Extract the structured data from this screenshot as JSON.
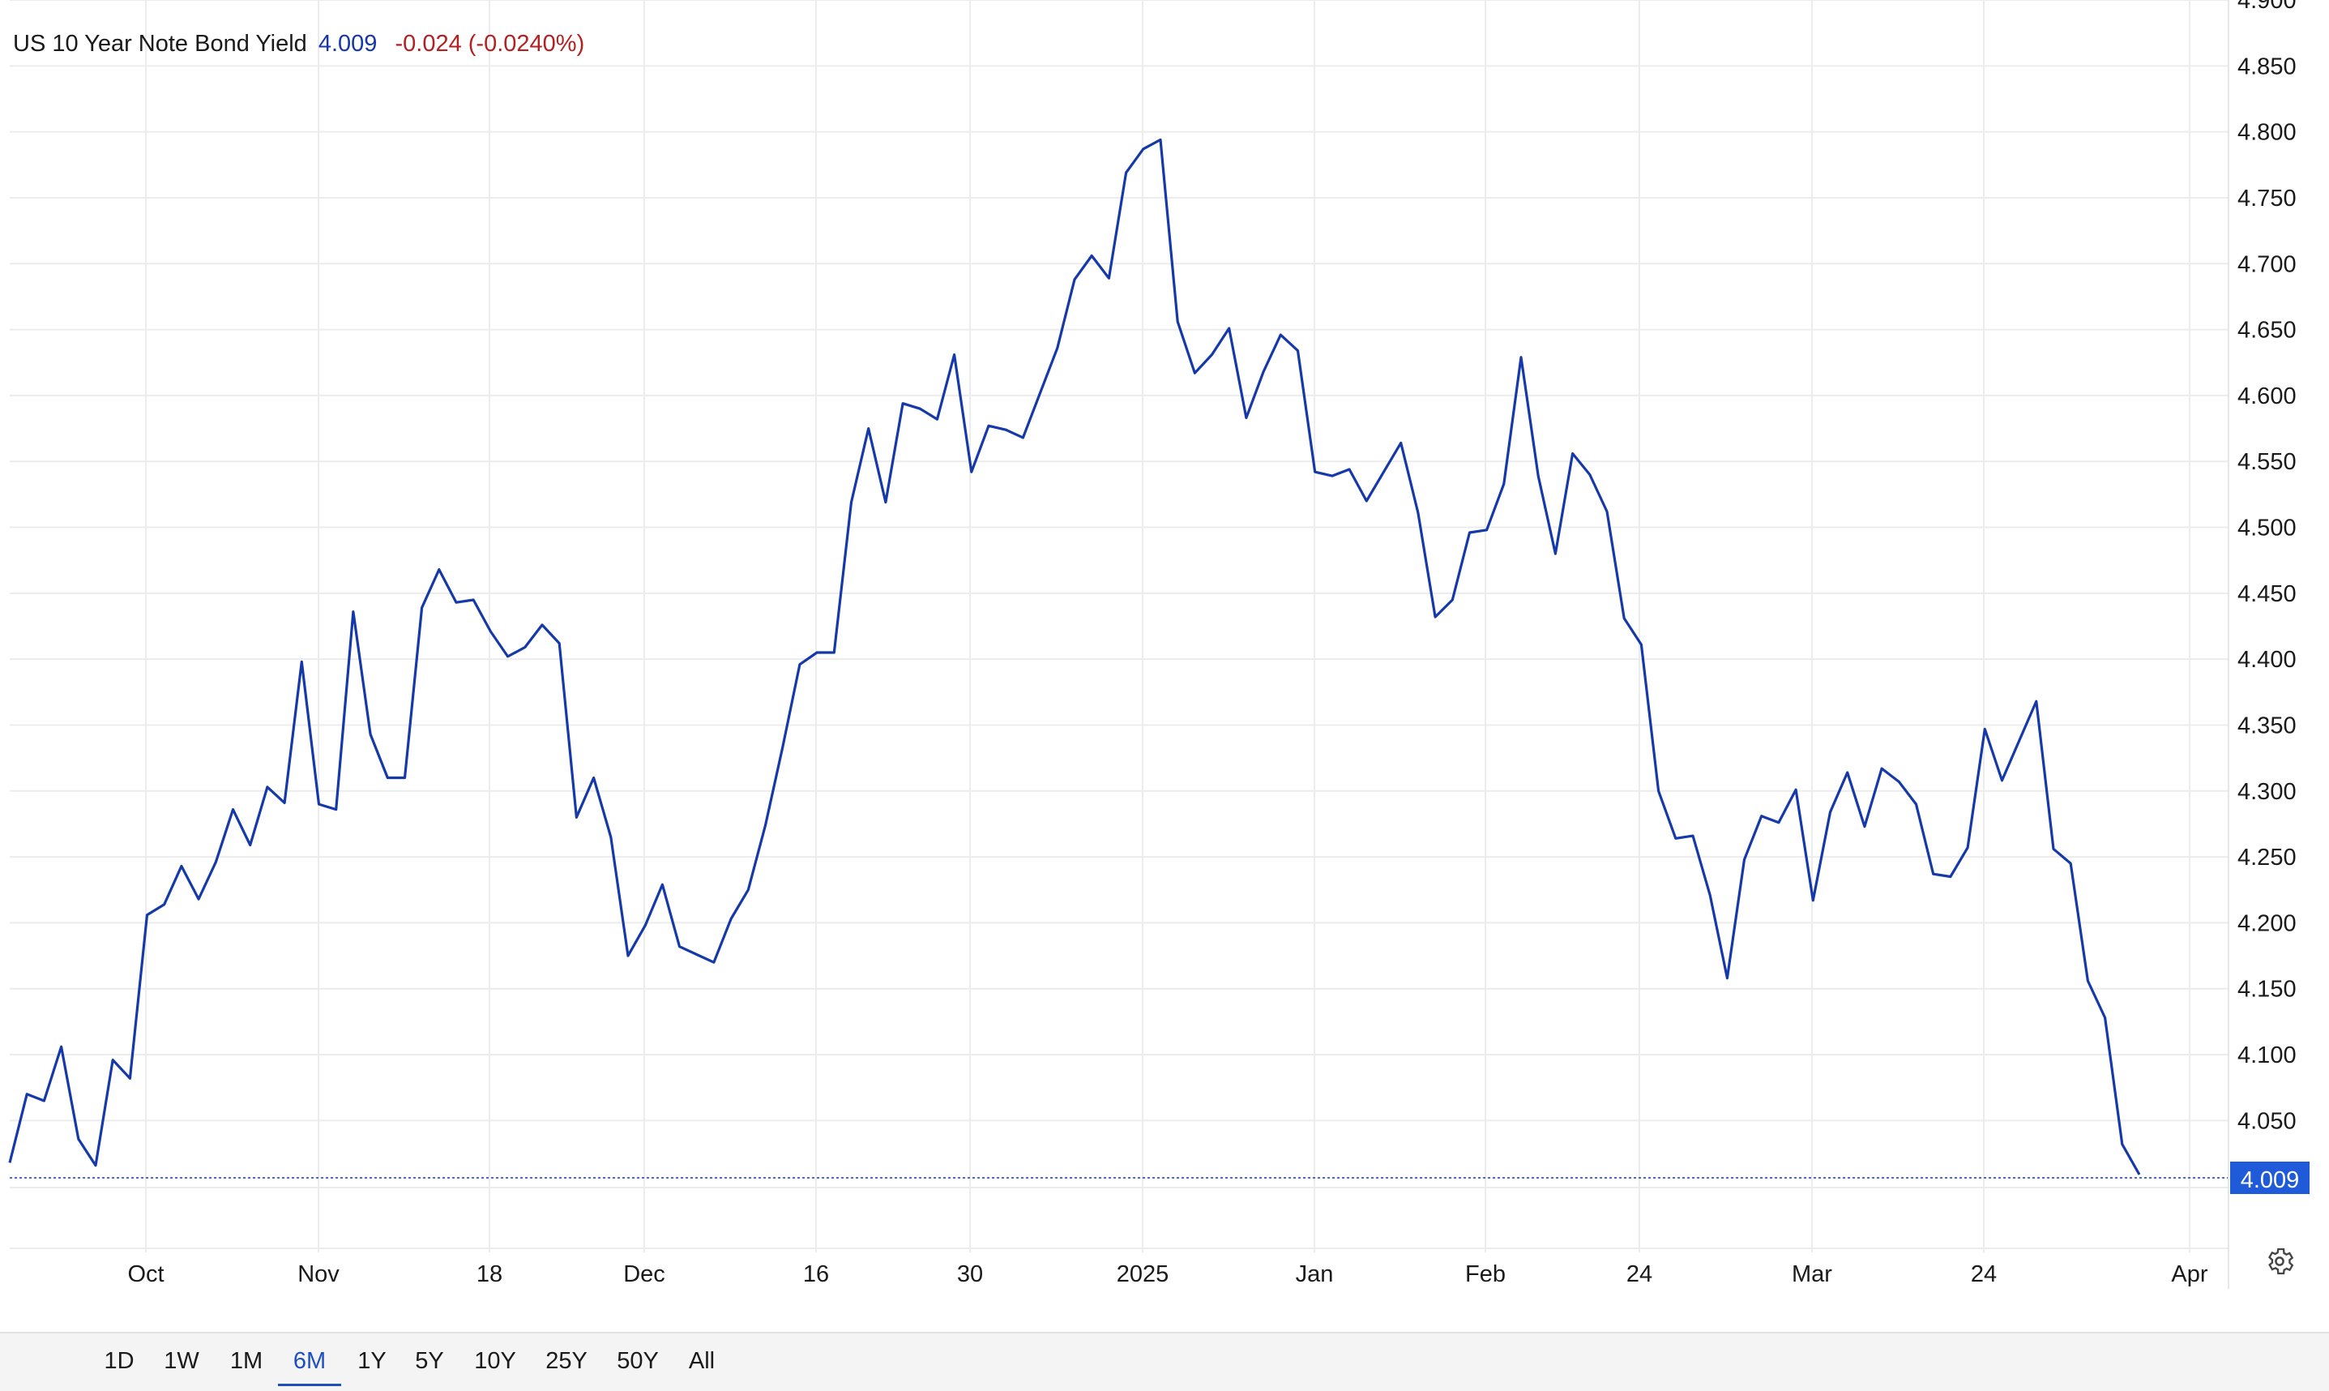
{
  "header": {
    "name": "US 10 Year Note Bond Yield",
    "last": "4.009",
    "change": "-0.024 (-0.0240%)"
  },
  "current_value_label": "4.009",
  "range_buttons": [
    "1D",
    "1W",
    "1M",
    "6M",
    "1Y",
    "5Y",
    "10Y",
    "25Y",
    "50Y",
    "All"
  ],
  "active_range": "6M",
  "icons": {
    "settings": "gear-icon"
  },
  "colors": {
    "line": "#1539a8",
    "change_negative": "#b32222",
    "active_tab": "#1f4fbf"
  },
  "chart_data": {
    "type": "line",
    "title": "",
    "xlabel": "",
    "ylabel": "",
    "ylim": [
      3.95,
      4.9
    ],
    "y_ticks": [
      "4.900",
      "4.850",
      "4.800",
      "4.750",
      "4.700",
      "4.650",
      "4.600",
      "4.550",
      "4.500",
      "4.450",
      "4.400",
      "4.350",
      "4.300",
      "4.250",
      "4.200",
      "4.150",
      "4.100",
      "4.050"
    ],
    "x_ticks": [
      {
        "label": "Oct",
        "date": "2024-10-01"
      },
      {
        "label": "Nov",
        "date": "2024-11-01"
      },
      {
        "label": "18",
        "date": "2024-11-18"
      },
      {
        "label": "Dec",
        "date": "2024-12-01"
      },
      {
        "label": "16",
        "date": "2024-12-16"
      },
      {
        "label": "30",
        "date": "2024-12-30"
      },
      {
        "label": "2025",
        "date": "2025-01-01"
      },
      {
        "label": "Jan",
        "date": "2025-01-16"
      },
      {
        "label": "Feb",
        "date": "2025-02-01"
      },
      {
        "label": "24",
        "date": "2025-02-24"
      },
      {
        "label": "Mar",
        "date": "2025-03-01"
      },
      {
        "label": "24",
        "date": "2025-03-24"
      },
      {
        "label": "Apr",
        "date": "2025-04-01"
      }
    ],
    "grid": true,
    "series": [
      {
        "values": [
          4.018,
          4.07,
          4.065,
          4.106,
          4.036,
          4.016,
          4.096,
          4.082,
          4.206,
          4.214,
          4.243,
          4.218,
          4.246,
          4.286,
          4.259,
          4.303,
          4.291,
          4.398,
          4.29,
          4.286,
          4.436,
          4.343,
          4.31,
          4.31,
          4.439,
          4.468,
          4.443,
          4.445,
          4.421,
          4.402,
          4.409,
          4.426,
          4.412,
          4.28,
          4.31,
          4.265,
          4.175,
          4.198,
          4.229,
          4.182,
          4.176,
          4.17,
          4.203,
          4.225,
          4.274,
          4.333,
          4.396,
          4.405,
          4.405,
          4.519,
          4.575,
          4.519,
          4.594,
          4.59,
          4.582,
          4.631,
          4.542,
          4.577,
          4.574,
          4.568,
          4.602,
          4.636,
          4.688,
          4.706,
          4.689,
          4.769,
          4.787,
          4.794,
          4.656,
          4.617,
          4.631,
          4.651,
          4.583,
          4.618,
          4.646,
          4.634,
          4.542,
          4.539,
          4.544,
          4.52,
          4.542,
          4.564,
          4.511,
          4.432,
          4.445,
          4.496,
          4.498,
          4.533,
          4.629,
          4.539,
          4.48,
          4.556,
          4.54,
          4.512,
          4.431,
          4.411,
          4.3,
          4.264,
          4.266,
          4.221,
          4.158,
          4.248,
          4.281,
          4.276,
          4.301,
          4.217,
          4.284,
          4.314,
          4.273,
          4.317,
          4.307,
          4.29,
          4.237,
          4.235,
          4.257,
          4.347,
          4.308,
          4.338,
          4.368,
          4.256,
          4.245,
          4.156,
          4.128,
          4.032,
          4.009
        ]
      }
    ]
  }
}
